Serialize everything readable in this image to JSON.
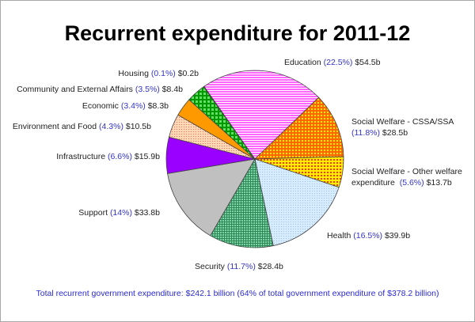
{
  "chart_data": {
    "type": "pie",
    "title": "Recurrent expenditure for 2011-12",
    "slices": [
      {
        "name": "Education",
        "percent": 22.5,
        "value": "$54.5b",
        "color": "#ff66ff",
        "pattern": "horizontal-lines"
      },
      {
        "name": "Social Welfare - CSSA/SSA",
        "percent": 11.8,
        "value": "$28.5b",
        "color": "#ff6600",
        "pattern": "yellow-dots",
        "line2": true
      },
      {
        "name": "Social Welfare - Other welfare",
        "name2": "expenditure",
        "percent": 5.6,
        "value": "$13.7b",
        "color": "#ffcc00",
        "pattern": "red-dots"
      },
      {
        "name": "Health",
        "percent": 16.5,
        "value": "$39.9b",
        "color": "#cce6ff",
        "pattern": "diagonal-fine"
      },
      {
        "name": "Security",
        "percent": 11.7,
        "value": "$28.4b",
        "color": "#66cc99",
        "pattern": "grid-fine"
      },
      {
        "name": "Support",
        "percent": 14,
        "value": "$33.8b",
        "color": "#c0c0c0",
        "pattern": "solid"
      },
      {
        "name": "Infrastructure",
        "percent": 6.6,
        "value": "$15.9b",
        "color": "#9900ff",
        "pattern": "solid"
      },
      {
        "name": "Environment and Food",
        "percent": 4.3,
        "value": "$10.5b",
        "color": "#ffcc99",
        "pattern": "dots"
      },
      {
        "name": "Economic",
        "percent": 3.4,
        "value": "$8.3b",
        "color": "#ff9900",
        "pattern": "solid"
      },
      {
        "name": "Community and External Affairs",
        "percent": 3.5,
        "value": "$8.4b",
        "color": "#009900",
        "pattern": "grid-coarse"
      },
      {
        "name": "Housing",
        "percent": 0.1,
        "value": "$0.2b",
        "color": "#cc00cc",
        "pattern": "solid"
      }
    ],
    "start_angle_deg": -35,
    "direction": "clockwise",
    "footer": "Total recurrent government expenditure: $242.1 billion (64% of total government expenditure of $378.2 billion)"
  }
}
